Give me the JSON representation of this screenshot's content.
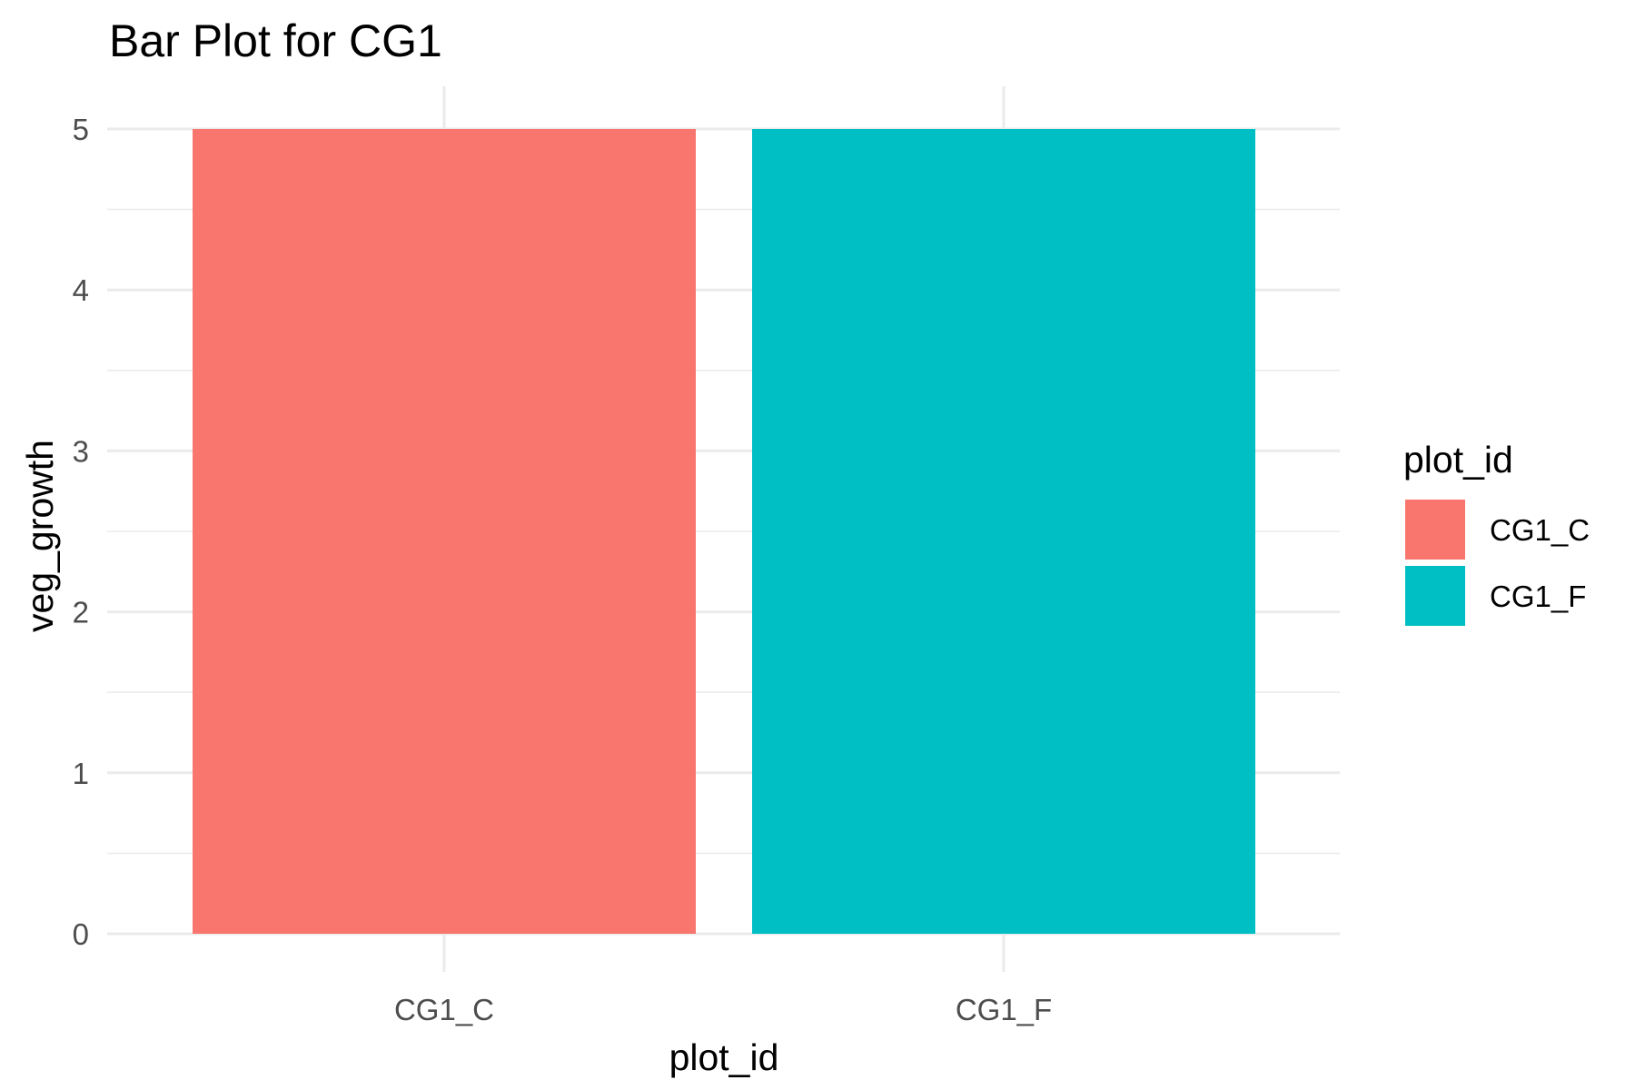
{
  "chart_data": {
    "type": "bar",
    "title": "Bar Plot for CG1",
    "xlabel": "plot_id",
    "ylabel": "veg_growth",
    "categories": [
      "CG1_C",
      "CG1_F"
    ],
    "values": [
      5,
      5
    ],
    "colors": [
      "#F8766D",
      "#00BFC4"
    ],
    "ylim": [
      0,
      5
    ],
    "y_ticks": [
      "0",
      "1",
      "2",
      "3",
      "4",
      "5"
    ],
    "grid": true,
    "legend": {
      "title": "plot_id",
      "placement": "right",
      "entries": [
        {
          "label": "CG1_C",
          "color": "#F8766D"
        },
        {
          "label": "CG1_F",
          "color": "#00BFC4"
        }
      ]
    }
  }
}
